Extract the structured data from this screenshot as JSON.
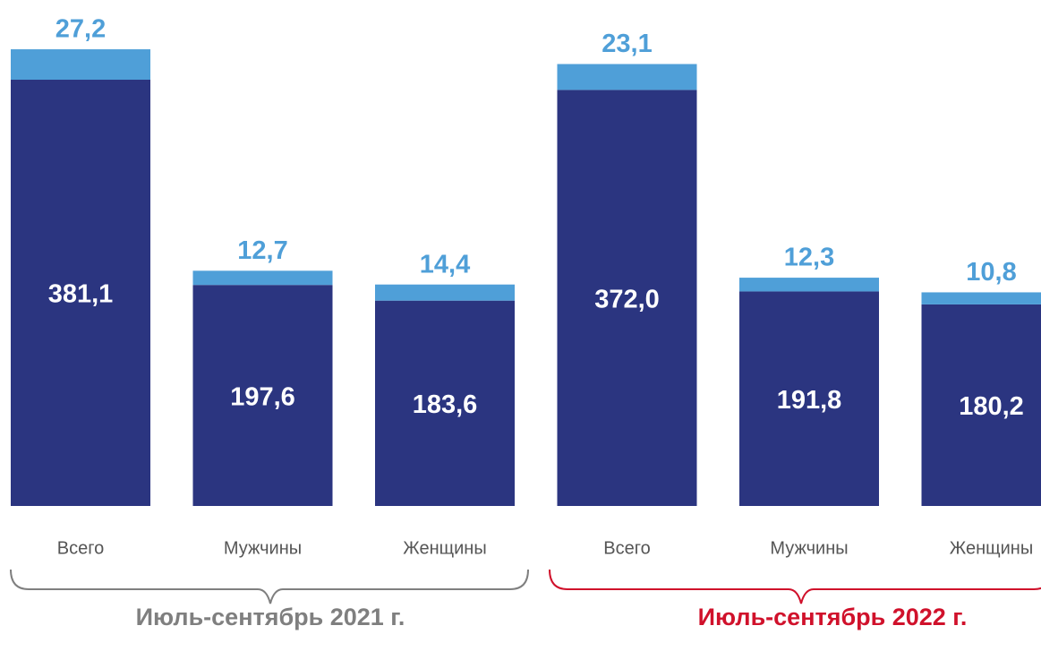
{
  "chart_data": {
    "type": "stacked_bar",
    "categories": [
      "Всего",
      "Мужчины",
      "Женщины",
      "Всего",
      "Мужчины",
      "Женщины"
    ],
    "groups": [
      {
        "label": "Июль-сентябрь 2021 г.",
        "color": "#7f7f7f"
      },
      {
        "label": "Июль-сентябрь 2022 г.",
        "color": "#d0112b"
      }
    ],
    "series": [
      {
        "color": "#2b3580",
        "values": [
          381.1,
          197.6,
          183.6,
          372.0,
          191.8,
          180.2
        ],
        "value_labels": [
          "381,1",
          "197,6",
          "183,6",
          "372,0",
          "191,8",
          "180,2"
        ]
      },
      {
        "color": "#4f9fd8",
        "values": [
          27.2,
          12.7,
          14.4,
          23.1,
          12.3,
          10.8
        ],
        "value_labels": [
          "27,2",
          "12,7",
          "14,4",
          "23,1",
          "12,3",
          "10,8"
        ]
      }
    ]
  }
}
